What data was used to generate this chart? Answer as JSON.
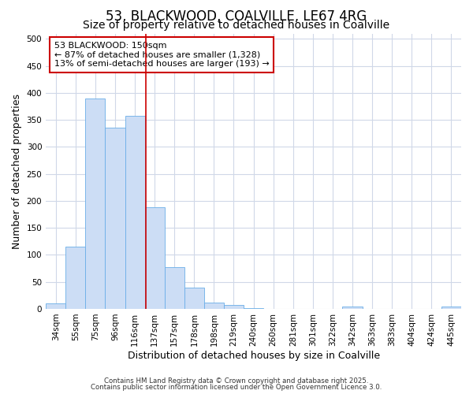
{
  "title1": "53, BLACKWOOD, COALVILLE, LE67 4RG",
  "title2": "Size of property relative to detached houses in Coalville",
  "xlabel": "Distribution of detached houses by size in Coalville",
  "ylabel": "Number of detached properties",
  "categories": [
    "34sqm",
    "55sqm",
    "75sqm",
    "96sqm",
    "116sqm",
    "137sqm",
    "157sqm",
    "178sqm",
    "198sqm",
    "219sqm",
    "240sqm",
    "260sqm",
    "281sqm",
    "301sqm",
    "322sqm",
    "342sqm",
    "363sqm",
    "383sqm",
    "404sqm",
    "424sqm",
    "445sqm"
  ],
  "values": [
    10,
    115,
    390,
    335,
    357,
    188,
    78,
    40,
    12,
    7,
    1,
    0,
    0,
    0,
    0,
    5,
    0,
    0,
    0,
    0,
    4
  ],
  "bar_color": "#ccddf5",
  "bar_edge_color": "#6aaee8",
  "vline_x": 4.55,
  "vline_color": "#cc0000",
  "annotation_text": "53 BLACKWOOD: 150sqm\n← 87% of detached houses are smaller (1,328)\n13% of semi-detached houses are larger (193) →",
  "annotation_box_color": "#ffffff",
  "annotation_box_edge": "#cc0000",
  "background_color": "#ffffff",
  "plot_bg_color": "#ffffff",
  "grid_color": "#d0d8e8",
  "ylim": [
    0,
    510
  ],
  "yticks": [
    0,
    50,
    100,
    150,
    200,
    250,
    300,
    350,
    400,
    450,
    500
  ],
  "footer1": "Contains HM Land Registry data © Crown copyright and database right 2025.",
  "footer2": "Contains public sector information licensed under the Open Government Licence 3.0.",
  "title_fontsize": 12,
  "subtitle_fontsize": 10,
  "tick_fontsize": 7.5,
  "label_fontsize": 9,
  "annotation_fontsize": 8
}
